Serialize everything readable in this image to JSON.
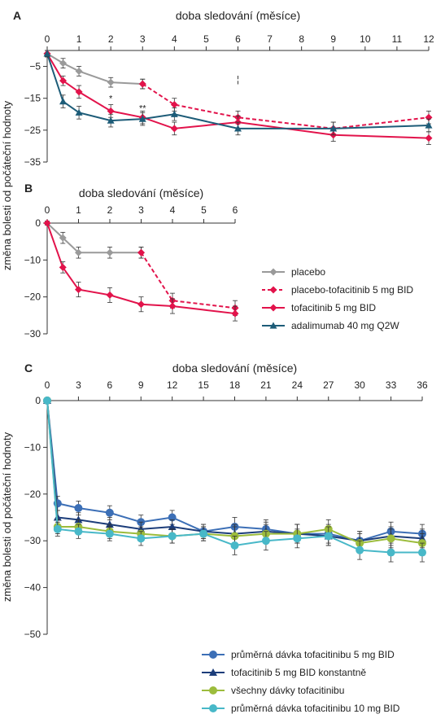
{
  "y_axis_label": "změna bolesti od počáteční hodnoty",
  "chart_data": [
    {
      "panel": "A",
      "type": "line",
      "xlabel": "doba sledování (měsíce)",
      "xlim": [
        0,
        12
      ],
      "ylim": [
        -35,
        0
      ],
      "x_ticks": [
        0,
        1,
        2,
        3,
        4,
        5,
        6,
        7,
        8,
        9,
        10,
        11,
        12
      ],
      "y_ticks": [
        -5,
        -15,
        -25,
        -35
      ],
      "x_axis_position": "top",
      "annotations": [
        "*",
        "**",
        "¦"
      ],
      "series": [
        {
          "name": "placebo",
          "color": "#9a9a9a",
          "marker": "diamond",
          "dash": false,
          "x": [
            0,
            0.5,
            1,
            2,
            3
          ],
          "y": [
            -1,
            -4,
            -6.5,
            -10,
            -10.5
          ],
          "err": [
            1,
            1.5,
            1.5,
            1.5,
            1.5
          ]
        },
        {
          "name": "placebo-tofacitinib 5 mg BID",
          "color": "#e2134b",
          "marker": "diamond",
          "dash": true,
          "x": [
            3,
            4,
            6,
            9,
            12
          ],
          "y": [
            -10.5,
            -17,
            -21,
            -24.5,
            -21
          ],
          "err": [
            1.5,
            2,
            2,
            2,
            2
          ]
        },
        {
          "name": "tofacitinib 5 mg BID",
          "color": "#e2134b",
          "marker": "diamond",
          "dash": false,
          "x": [
            0,
            0.5,
            1,
            2,
            3,
            4,
            6,
            9,
            12
          ],
          "y": [
            -1,
            -9.5,
            -13,
            -19,
            -21,
            -24.5,
            -22.5,
            -26.5,
            -27.5
          ],
          "err": [
            1,
            1.5,
            2,
            2,
            2,
            2,
            2,
            2,
            2
          ]
        },
        {
          "name": "adalimumab 40 mg Q2W",
          "color": "#1d5c78",
          "marker": "triangle",
          "dash": false,
          "x": [
            0,
            0.5,
            1,
            2,
            3,
            4,
            6,
            9,
            12
          ],
          "y": [
            -1,
            -16,
            -19.5,
            -22,
            -21.5,
            -20,
            -24.5,
            -24.5,
            -23.5
          ],
          "err": [
            1,
            2,
            2,
            2,
            2,
            2,
            2,
            2,
            2
          ]
        }
      ]
    },
    {
      "panel": "B",
      "type": "line",
      "xlabel": "doba sledování (měsíce)",
      "xlim": [
        0,
        6
      ],
      "ylim": [
        -30,
        0
      ],
      "x_ticks": [
        0,
        1,
        2,
        3,
        4,
        5,
        6
      ],
      "y_ticks": [
        0,
        -10,
        -20,
        -30
      ],
      "x_axis_position": "top",
      "series": [
        {
          "name": "placebo",
          "color": "#9a9a9a",
          "marker": "diamond",
          "dash": false,
          "x": [
            0,
            0.5,
            1,
            2,
            3
          ],
          "y": [
            0,
            -4,
            -8,
            -8,
            -8
          ],
          "err": [
            0.5,
            1.5,
            1.5,
            1.5,
            1.5
          ]
        },
        {
          "name": "placebo-tofacitinib 5 mg BID",
          "color": "#e2134b",
          "marker": "diamond",
          "dash": true,
          "x": [
            3,
            4,
            6
          ],
          "y": [
            -8,
            -21,
            -23
          ],
          "err": [
            1.5,
            2,
            2
          ]
        },
        {
          "name": "tofacitinib 5 mg BID",
          "color": "#e2134b",
          "marker": "diamond",
          "dash": false,
          "x": [
            0,
            0.5,
            1,
            2,
            3,
            4,
            6
          ],
          "y": [
            0,
            -12,
            -18,
            -19.5,
            -22,
            -22.5,
            -24.5
          ],
          "err": [
            0.5,
            1.5,
            2,
            2,
            2,
            2,
            2
          ]
        }
      ]
    },
    {
      "panel": "C",
      "type": "line",
      "xlabel": "doba sledování (měsíce)",
      "xlim": [
        0,
        36
      ],
      "ylim": [
        -50,
        0
      ],
      "x_ticks": [
        0,
        3,
        6,
        9,
        12,
        15,
        18,
        21,
        24,
        27,
        30,
        33,
        36
      ],
      "y_ticks": [
        0,
        -10,
        -20,
        -30,
        -40,
        -50
      ],
      "x_axis_position": "top",
      "series": [
        {
          "name": "průměrná dávka tofacitinibu 5 mg BID",
          "color": "#3c6fb6",
          "marker": "circle",
          "x": [
            0,
            1,
            3,
            6,
            9,
            12,
            15,
            18,
            21,
            24,
            27,
            30,
            33,
            36
          ],
          "y": [
            0,
            -22,
            -23,
            -24,
            -26,
            -25,
            -28,
            -27,
            -27.5,
            -28.5,
            -28.5,
            -30,
            -28,
            -28.5
          ],
          "err": [
            0.5,
            1.5,
            1.5,
            1.5,
            1.5,
            1.5,
            1.5,
            2,
            2,
            2,
            2,
            2,
            2,
            2
          ]
        },
        {
          "name": "tofacitinib 5 mg BID konstantně",
          "color": "#1c3d7a",
          "marker": "triangle",
          "x": [
            0,
            1,
            3,
            6,
            9,
            12,
            15,
            18,
            21,
            24,
            27,
            30,
            33,
            36
          ],
          "y": [
            0,
            -25,
            -25.5,
            -26.5,
            -27.5,
            -27,
            -28,
            -28.5,
            -28,
            -28.5,
            -29,
            -30,
            -29,
            -29.5
          ],
          "err": [
            0.5,
            1.5,
            1.5,
            1.5,
            1.5,
            1.5,
            1.5,
            2,
            2,
            2,
            2,
            2,
            2,
            2
          ]
        },
        {
          "name": "všechny dávky tofacitinibu",
          "color": "#9cbc3c",
          "marker": "circle",
          "x": [
            0,
            1,
            3,
            6,
            9,
            12,
            15,
            18,
            21,
            24,
            27,
            30,
            33,
            36
          ],
          "y": [
            0,
            -27,
            -27,
            -28,
            -28.5,
            -29,
            -28.5,
            -29,
            -28.5,
            -28.5,
            -27.5,
            -30.5,
            -29.5,
            -30.5
          ],
          "err": [
            0.5,
            1.5,
            1.5,
            1.5,
            1.5,
            1.5,
            1.5,
            2,
            2,
            2,
            2,
            2,
            2,
            2
          ]
        },
        {
          "name": "průměrná dávka tofacitinibu 10 mg BID",
          "color": "#48b8c8",
          "marker": "circle",
          "x": [
            0,
            1,
            3,
            6,
            9,
            12,
            15,
            18,
            21,
            24,
            27,
            30,
            33,
            36
          ],
          "y": [
            0,
            -27.5,
            -28,
            -28.5,
            -29.5,
            -29,
            -28.5,
            -31,
            -30,
            -29.5,
            -29,
            -32,
            -32.5,
            -32.5
          ],
          "err": [
            0.5,
            1.5,
            1.5,
            1.5,
            1.5,
            1.5,
            1.5,
            2,
            2,
            2,
            2,
            2,
            2,
            2
          ]
        }
      ]
    }
  ]
}
